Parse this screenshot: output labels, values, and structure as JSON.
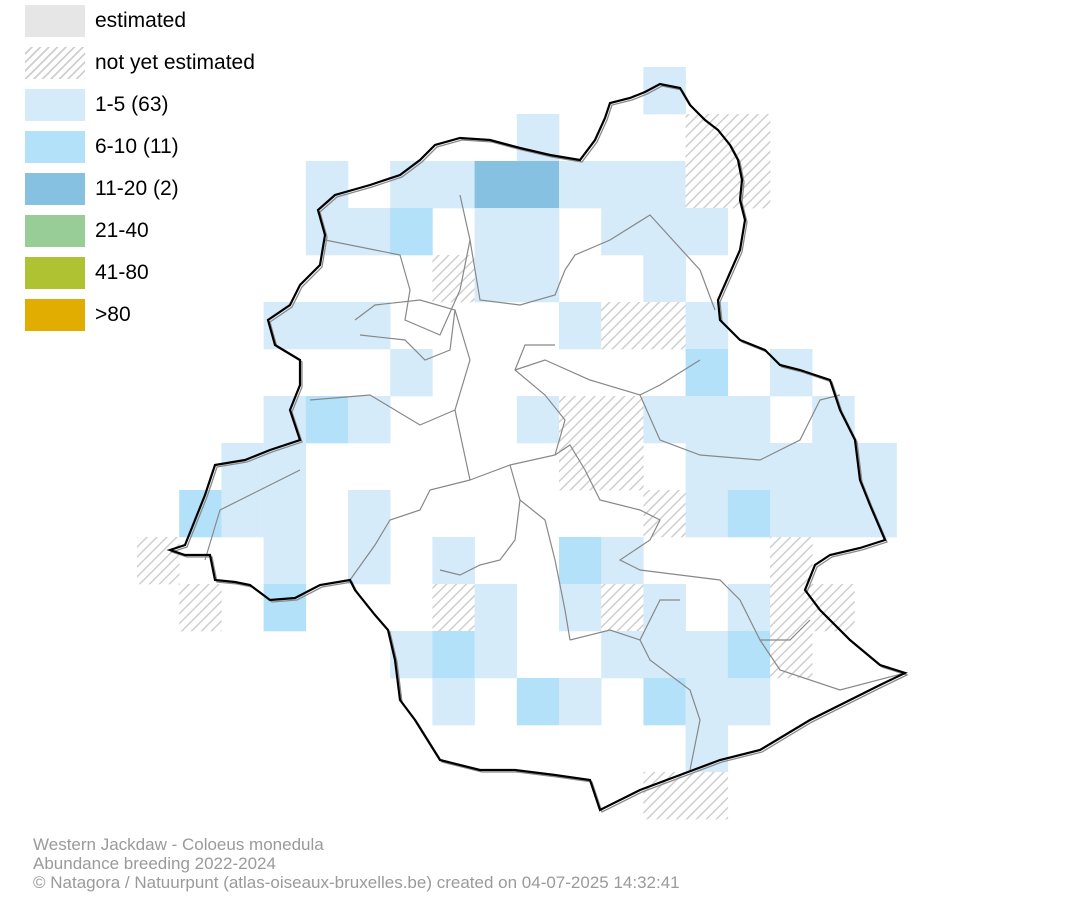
{
  "legend": {
    "items": [
      {
        "label": "estimated",
        "color": "#e6e6e6",
        "pattern": "solid"
      },
      {
        "label": "not yet estimated",
        "color": "#cfcfcf",
        "pattern": "hatch"
      },
      {
        "label": "1-5 (63)",
        "color": "#d5ebfa",
        "pattern": "solid"
      },
      {
        "label": "6-10 (11)",
        "color": "#b3e1f9",
        "pattern": "solid"
      },
      {
        "label": "11-20 (2)",
        "color": "#86c1e1",
        "pattern": "solid"
      },
      {
        "label": "21-40",
        "color": "#99cd98",
        "pattern": "solid"
      },
      {
        "label": "41-80",
        "color": "#afc232",
        "pattern": "solid"
      },
      {
        "label": ">80",
        "color": "#e0ad00",
        "pattern": "solid"
      }
    ]
  },
  "footer": {
    "species": "Western Jackdaw - Coloeus monedula",
    "subtitle": "Abundance breeding 2022-2024",
    "credit": "© Natagora / Natuurpunt (atlas-oiseaux-bruxelles.be) created on 04-07-2025 14:32:41"
  }
}
